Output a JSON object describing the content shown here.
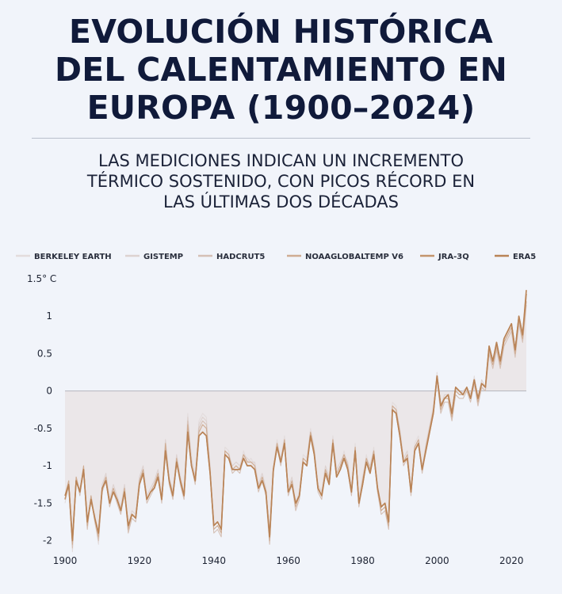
{
  "title_lines": [
    "EVOLUCIÓN HISTÓRICA",
    "DEL CALENTAMIENTO EN",
    "EUROPA (1900–2024)"
  ],
  "subtitle_lines": [
    "LAS MEDICIONES INDICAN UN INCREMENTO",
    "TÉRMICO SOSTENIDO, CON PICOS RÉCORD EN",
    "LAS ÚLTIMAS DOS DÉCADAS"
  ],
  "chart_data": {
    "type": "line",
    "title": "EVOLUCIÓN HISTÓRICA DEL CALENTAMIENTO EN EUROPA (1900–2024)",
    "ylabel": "1.5° C",
    "xlim": [
      1900,
      2024
    ],
    "ylim": [
      -2.1,
      1.5
    ],
    "x_ticks": [
      1900,
      1920,
      1940,
      1960,
      1980,
      2000,
      2020
    ],
    "y_ticks": [
      {
        "value": 1.5,
        "label": "1.5° C"
      },
      {
        "value": 1,
        "label": "1"
      },
      {
        "value": 0.5,
        "label": "0.5"
      },
      {
        "value": 0,
        "label": "0"
      },
      {
        "value": -0.5,
        "label": "-0.5"
      },
      {
        "value": -1,
        "label": "-1"
      },
      {
        "value": -1.5,
        "label": "-1.5"
      },
      {
        "value": -2,
        "label": "-2"
      }
    ],
    "legend_position": "top",
    "x": [
      1900,
      1901,
      1902,
      1903,
      1904,
      1905,
      1906,
      1907,
      1908,
      1909,
      1910,
      1911,
      1912,
      1913,
      1914,
      1915,
      1916,
      1917,
      1918,
      1919,
      1920,
      1921,
      1922,
      1923,
      1924,
      1925,
      1926,
      1927,
      1928,
      1929,
      1930,
      1931,
      1932,
      1933,
      1934,
      1935,
      1936,
      1937,
      1938,
      1939,
      1940,
      1941,
      1942,
      1943,
      1944,
      1945,
      1946,
      1947,
      1948,
      1949,
      1950,
      1951,
      1952,
      1953,
      1954,
      1955,
      1956,
      1957,
      1958,
      1959,
      1960,
      1961,
      1962,
      1963,
      1964,
      1965,
      1966,
      1967,
      1968,
      1969,
      1970,
      1971,
      1972,
      1973,
      1974,
      1975,
      1976,
      1977,
      1978,
      1979,
      1980,
      1981,
      1982,
      1983,
      1984,
      1985,
      1986,
      1987,
      1988,
      1989,
      1990,
      1991,
      1992,
      1993,
      1994,
      1995,
      1996,
      1997,
      1998,
      1999,
      2000,
      2001,
      2002,
      2003,
      2004,
      2005,
      2006,
      2007,
      2008,
      2009,
      2010,
      2011,
      2012,
      2013,
      2014,
      2015,
      2016,
      2017,
      2018,
      2019,
      2020,
      2021,
      2022,
      2023,
      2024
    ],
    "series": [
      {
        "name": "BERKELEY EARTH",
        "color": "#e3dcdc",
        "values": [
          -1.5,
          -1.25,
          -2.15,
          -1.2,
          -1.35,
          -1.1,
          -1.8,
          -1.45,
          -1.7,
          -2.05,
          -1.3,
          -1.15,
          -1.5,
          -1.3,
          -1.45,
          -1.6,
          -1.3,
          -1.85,
          -1.65,
          -1.7,
          -1.2,
          -1.05,
          -1.45,
          -1.35,
          -1.25,
          -1.1,
          -1.45,
          -0.7,
          -1.2,
          -1.4,
          -0.9,
          -1.2,
          -1.4,
          -0.3,
          -0.95,
          -1.2,
          -0.4,
          -0.3,
          -0.35,
          -1.05,
          -1.85,
          -1.8,
          -1.9,
          -0.75,
          -0.8,
          -1.05,
          -1.0,
          -1.05,
          -0.8,
          -0.95,
          -0.9,
          -1.0,
          -1.3,
          -1.15,
          -1.35,
          -2.0,
          -1.0,
          -0.65,
          -0.95,
          -0.6,
          -1.35,
          -1.2,
          -1.55,
          -1.4,
          -0.85,
          -0.9,
          -0.5,
          -0.75,
          -1.3,
          -1.4,
          -1.05,
          -1.2,
          -0.6,
          -1.1,
          -1.0,
          -0.8,
          -1.0,
          -1.35,
          -0.7,
          -1.5,
          -1.2,
          -0.85,
          -1.05,
          -0.75,
          -1.3,
          -1.6,
          -1.55,
          -1.8,
          -0.15,
          -0.2,
          -0.55,
          -0.95,
          -0.85,
          -1.35,
          -0.7,
          -0.6,
          -1.05,
          -0.7,
          -0.45,
          -0.2,
          0.25,
          -0.25,
          -0.1,
          -0.1,
          -0.35,
          0.05,
          -0.05,
          -0.05,
          0.05,
          -0.1,
          0.2,
          -0.15,
          0.1,
          0.05,
          0.6,
          0.35,
          0.6,
          0.35,
          0.65,
          0.75,
          0.85,
          0.5,
          0.95,
          0.7,
          1.2
        ]
      },
      {
        "name": "GISTEMP",
        "color": "#ddd2d0",
        "values": [
          -1.4,
          -1.3,
          -2.05,
          -1.25,
          -1.3,
          -1.05,
          -1.75,
          -1.5,
          -1.65,
          -1.95,
          -1.25,
          -1.1,
          -1.45,
          -1.25,
          -1.4,
          -1.55,
          -1.25,
          -1.8,
          -1.6,
          -1.65,
          -1.15,
          -1.0,
          -1.4,
          -1.3,
          -1.2,
          -1.05,
          -1.4,
          -0.65,
          -1.15,
          -1.35,
          -0.85,
          -1.15,
          -1.35,
          -0.35,
          -0.9,
          -1.15,
          -0.45,
          -0.35,
          -0.4,
          -1.0,
          -1.8,
          -1.75,
          -1.85,
          -0.8,
          -0.85,
          -1.0,
          -0.95,
          -1.0,
          -0.85,
          -0.9,
          -0.95,
          -0.95,
          -1.25,
          -1.1,
          -1.3,
          -1.95,
          -1.05,
          -0.7,
          -0.9,
          -0.65,
          -1.3,
          -1.15,
          -1.5,
          -1.35,
          -0.9,
          -0.95,
          -0.55,
          -0.8,
          -1.25,
          -1.35,
          -1.0,
          -1.15,
          -0.65,
          -1.05,
          -0.95,
          -0.85,
          -0.95,
          -1.3,
          -0.75,
          -1.45,
          -1.15,
          -0.9,
          -1.0,
          -0.8,
          -1.25,
          -1.55,
          -1.5,
          -1.75,
          -0.2,
          -0.25,
          -0.5,
          -0.9,
          -0.8,
          -1.3,
          -0.75,
          -0.65,
          -1.0,
          -0.75,
          -0.5,
          -0.25,
          0.2,
          -0.2,
          -0.05,
          -0.05,
          -0.3,
          0.0,
          -0.05,
          0.0,
          0.05,
          -0.05,
          0.15,
          -0.1,
          0.15,
          0.05,
          0.55,
          0.4,
          0.65,
          0.4,
          0.7,
          0.8,
          0.9,
          0.55,
          1.0,
          0.75,
          1.25
        ]
      },
      {
        "name": "HADCRUT5",
        "color": "#d5c0b5",
        "values": [
          -1.45,
          -1.2,
          -2.1,
          -1.15,
          -1.4,
          -1.05,
          -1.85,
          -1.4,
          -1.75,
          -2.0,
          -1.35,
          -1.2,
          -1.55,
          -1.35,
          -1.5,
          -1.65,
          -1.35,
          -1.9,
          -1.7,
          -1.75,
          -1.25,
          -1.1,
          -1.5,
          -1.4,
          -1.3,
          -1.15,
          -1.5,
          -0.75,
          -1.25,
          -1.45,
          -0.95,
          -1.25,
          -1.45,
          -0.4,
          -1.0,
          -1.25,
          -0.5,
          -0.4,
          -0.45,
          -1.1,
          -1.9,
          -1.85,
          -1.95,
          -0.85,
          -0.9,
          -1.1,
          -1.05,
          -1.1,
          -0.9,
          -1.0,
          -1.0,
          -1.05,
          -1.35,
          -1.2,
          -1.4,
          -2.05,
          -1.1,
          -0.75,
          -1.0,
          -0.7,
          -1.4,
          -1.25,
          -1.6,
          -1.45,
          -0.95,
          -1.0,
          -0.6,
          -0.85,
          -1.35,
          -1.45,
          -1.1,
          -1.25,
          -0.7,
          -1.15,
          -1.05,
          -0.9,
          -1.05,
          -1.4,
          -0.8,
          -1.55,
          -1.25,
          -0.95,
          -1.1,
          -0.85,
          -1.35,
          -1.65,
          -1.6,
          -1.85,
          -0.25,
          -0.3,
          -0.6,
          -1.0,
          -0.9,
          -1.4,
          -0.8,
          -0.7,
          -1.1,
          -0.8,
          -0.55,
          -0.3,
          0.15,
          -0.3,
          -0.15,
          -0.15,
          -0.4,
          -0.05,
          -0.1,
          -0.1,
          0.0,
          -0.15,
          0.1,
          -0.2,
          0.05,
          0.0,
          0.5,
          0.3,
          0.55,
          0.3,
          0.6,
          0.7,
          0.8,
          0.45,
          0.9,
          0.65,
          1.15
        ]
      },
      {
        "name": "NOAAGLOBALTEMP V6",
        "color": "#cfac92",
        "values": [
          -1.4,
          -1.2,
          -2.05,
          -1.15,
          -1.35,
          -1.0,
          -1.8,
          -1.4,
          -1.7,
          -1.95,
          -1.3,
          -1.15,
          -1.5,
          -1.3,
          -1.45,
          -1.6,
          -1.3,
          -1.85,
          -1.65,
          -1.7,
          -1.2,
          -1.05,
          -1.45,
          -1.35,
          -1.25,
          -1.1,
          -1.45,
          -0.7,
          -1.2,
          -1.4,
          -0.9,
          -1.2,
          -1.4,
          -0.45,
          -1.0,
          -1.2,
          -0.55,
          -0.45,
          -0.5,
          -1.05,
          -1.85,
          -1.8,
          -1.9,
          -0.8,
          -0.85,
          -1.05,
          -1.0,
          -1.05,
          -0.85,
          -0.95,
          -0.95,
          -1.0,
          -1.3,
          -1.15,
          -1.35,
          -2.0,
          -1.05,
          -0.7,
          -0.95,
          -0.65,
          -1.35,
          -1.2,
          -1.55,
          -1.4,
          -0.9,
          -0.95,
          -0.55,
          -0.8,
          -1.3,
          -1.4,
          -1.05,
          -1.2,
          -0.65,
          -1.1,
          -1.0,
          -0.85,
          -1.0,
          -1.35,
          -0.75,
          -1.5,
          -1.2,
          -0.9,
          -1.05,
          -0.8,
          -1.3,
          -1.6,
          -1.55,
          -1.8,
          -0.2,
          -0.25,
          -0.55,
          -0.95,
          -0.85,
          -1.35,
          -0.75,
          -0.65,
          -1.05,
          -0.75,
          -0.5,
          -0.25,
          0.2,
          -0.25,
          -0.1,
          -0.1,
          -0.35,
          0.0,
          -0.05,
          -0.05,
          0.05,
          -0.1,
          0.15,
          -0.15,
          0.1,
          0.05,
          0.55,
          0.35,
          0.6,
          0.35,
          0.65,
          0.75,
          0.85,
          0.5,
          0.95,
          0.7,
          1.2
        ]
      },
      {
        "name": "JRA-3Q",
        "color": "#c3946d",
        "values": [
          -1.45,
          -1.25,
          -2.0,
          -1.2,
          -1.35,
          -1.05,
          -1.75,
          -1.45,
          -1.7,
          -1.9,
          -1.3,
          -1.2,
          -1.5,
          -1.35,
          -1.45,
          -1.6,
          -1.35,
          -1.8,
          -1.65,
          -1.7,
          -1.25,
          -1.1,
          -1.45,
          -1.35,
          -1.3,
          -1.15,
          -1.45,
          -0.8,
          -1.2,
          -1.4,
          -0.95,
          -1.2,
          -1.4,
          -0.55,
          -1.0,
          -1.2,
          -0.6,
          -0.55,
          -0.6,
          -1.1,
          -1.8,
          -1.75,
          -1.85,
          -0.85,
          -0.9,
          -1.05,
          -1.05,
          -1.05,
          -0.9,
          -1.0,
          -1.0,
          -1.05,
          -1.3,
          -1.2,
          -1.35,
          -1.95,
          -1.05,
          -0.75,
          -0.95,
          -0.7,
          -1.35,
          -1.25,
          -1.5,
          -1.4,
          -0.95,
          -1.0,
          -0.6,
          -0.85,
          -1.3,
          -1.4,
          -1.1,
          -1.25,
          -0.7,
          -1.15,
          -1.05,
          -0.9,
          -1.05,
          -1.35,
          -0.8,
          -1.5,
          -1.25,
          -0.95,
          -1.1,
          -0.85,
          -1.3,
          -1.55,
          -1.5,
          -1.75,
          -0.25,
          -0.3,
          -0.6,
          -0.95,
          -0.9,
          -1.35,
          -0.8,
          -0.7,
          -1.05,
          -0.8,
          -0.55,
          -0.3,
          0.2,
          -0.2,
          -0.1,
          -0.05,
          -0.3,
          0.05,
          0.0,
          -0.05,
          0.05,
          -0.1,
          0.15,
          -0.1,
          0.1,
          0.05,
          0.6,
          0.4,
          0.65,
          0.4,
          0.7,
          0.8,
          0.9,
          0.55,
          1.0,
          0.75,
          1.3
        ]
      },
      {
        "name": "ERA5",
        "color": "#b98356",
        "values": [
          -1.4,
          -1.25,
          -2.0,
          -1.2,
          -1.35,
          -1.05,
          -1.75,
          -1.45,
          -1.7,
          -1.9,
          -1.3,
          -1.2,
          -1.5,
          -1.35,
          -1.45,
          -1.6,
          -1.35,
          -1.8,
          -1.65,
          -1.7,
          -1.25,
          -1.1,
          -1.45,
          -1.35,
          -1.3,
          -1.15,
          -1.45,
          -0.8,
          -1.2,
          -1.4,
          -0.95,
          -1.2,
          -1.4,
          -0.55,
          -1.0,
          -1.2,
          -0.6,
          -0.55,
          -0.6,
          -1.1,
          -1.8,
          -1.75,
          -1.85,
          -0.85,
          -0.9,
          -1.05,
          -1.05,
          -1.05,
          -0.9,
          -1.0,
          -1.0,
          -1.05,
          -1.3,
          -1.2,
          -1.35,
          -1.95,
          -1.05,
          -0.75,
          -0.95,
          -0.7,
          -1.35,
          -1.25,
          -1.5,
          -1.4,
          -0.95,
          -1.0,
          -0.6,
          -0.85,
          -1.3,
          -1.4,
          -1.1,
          -1.25,
          -0.7,
          -1.15,
          -1.05,
          -0.9,
          -1.05,
          -1.35,
          -0.8,
          -1.5,
          -1.25,
          -0.95,
          -1.1,
          -0.85,
          -1.3,
          -1.55,
          -1.5,
          -1.75,
          -0.25,
          -0.3,
          -0.6,
          -0.95,
          -0.9,
          -1.35,
          -0.8,
          -0.7,
          -1.05,
          -0.8,
          -0.55,
          -0.3,
          0.2,
          -0.2,
          -0.1,
          -0.05,
          -0.3,
          0.05,
          0.0,
          -0.05,
          0.05,
          -0.1,
          0.15,
          -0.1,
          0.1,
          0.05,
          0.6,
          0.4,
          0.65,
          0.4,
          0.7,
          0.8,
          0.9,
          0.55,
          1.0,
          0.75,
          1.35
        ]
      }
    ]
  }
}
